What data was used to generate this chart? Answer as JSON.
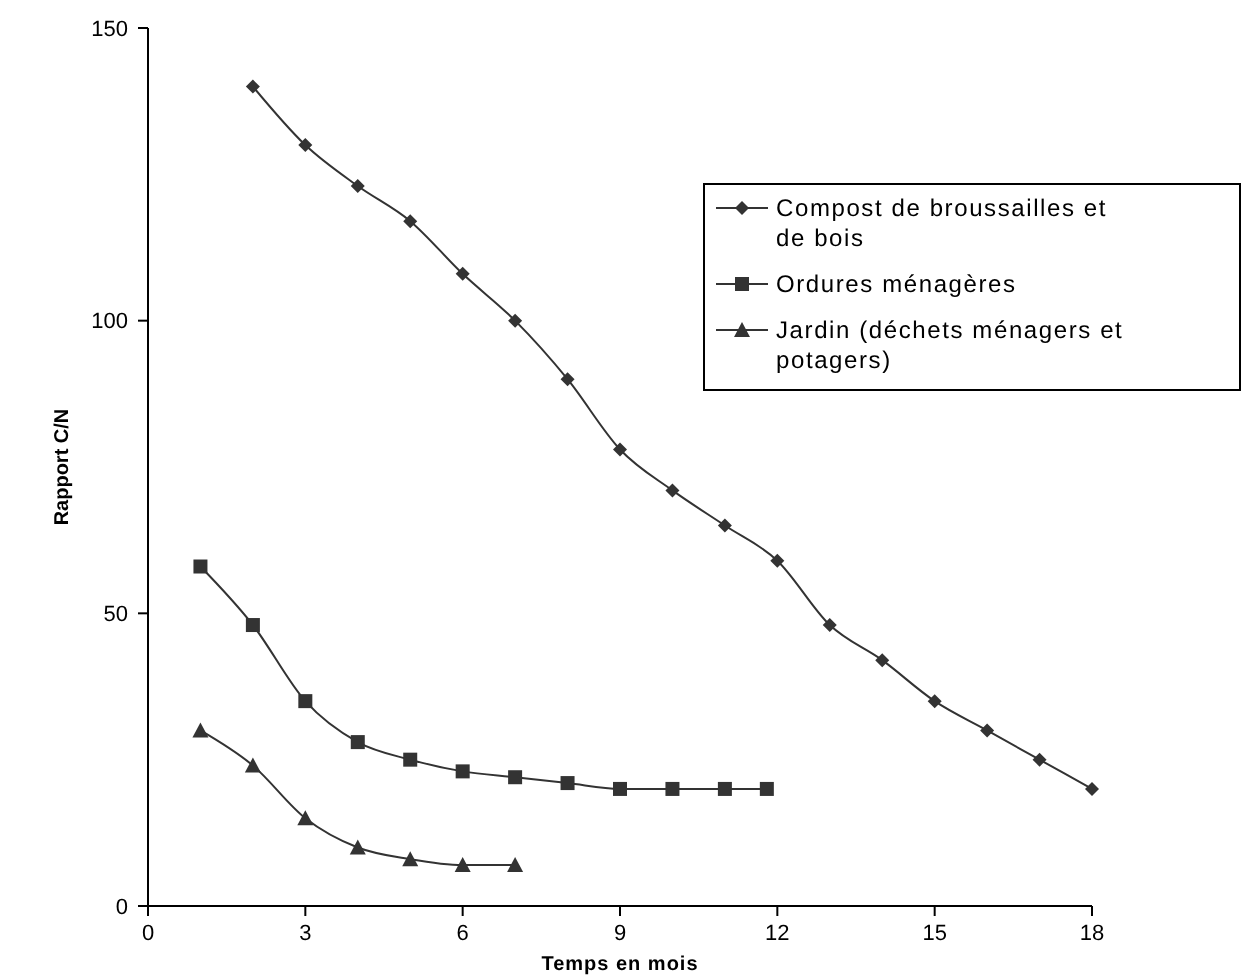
{
  "chart_data": {
    "type": "line",
    "xlabel": "Temps en mois",
    "ylabel": "Rapport C/N",
    "xlim": [
      0,
      18
    ],
    "xticks": [
      0,
      3,
      6,
      9,
      12,
      15,
      18
    ],
    "ylim": [
      0,
      150
    ],
    "yticks": [
      0,
      50,
      100,
      150
    ],
    "grid": false,
    "legend": "right",
    "line_style": "solid",
    "series": [
      {
        "name": "Compost de broussailles et de bois",
        "color": "#333333",
        "marker": "diamond",
        "x": [
          2,
          3,
          4,
          5,
          6,
          7,
          8,
          9,
          10,
          11,
          12,
          13,
          14,
          15,
          16,
          17,
          18
        ],
        "values": [
          140,
          130,
          123,
          117,
          108,
          100,
          90,
          78,
          71,
          65,
          59,
          48,
          42,
          35,
          30,
          25,
          20
        ]
      },
      {
        "name": "Ordures ménagères",
        "color": "#333333",
        "marker": "square",
        "x": [
          1,
          2,
          3,
          4,
          5,
          6,
          7,
          8,
          9,
          10,
          11,
          11.8
        ],
        "values": [
          58,
          48,
          35,
          28,
          25,
          23,
          22,
          21,
          20,
          20,
          20,
          20
        ]
      },
      {
        "name": "Jardin (déchets ménagers et potagers)",
        "color": "#333333",
        "marker": "triangle",
        "x": [
          1,
          2,
          3,
          4,
          5,
          6,
          7
        ],
        "values": [
          30,
          24,
          15,
          10,
          8,
          7,
          7
        ]
      }
    ]
  }
}
